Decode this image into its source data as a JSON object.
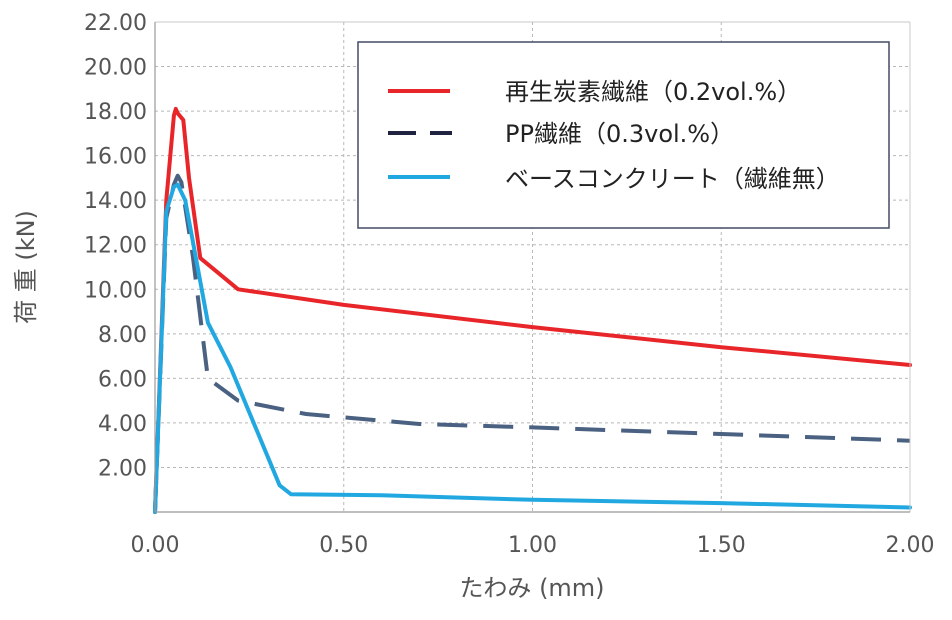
{
  "chart_data": {
    "type": "line",
    "xlabel": "たわみ (mm)",
    "ylabel": "荷 重 (kN)",
    "xlim": [
      0,
      2.0
    ],
    "ylim": [
      0,
      22.0
    ],
    "x_ticks": [
      "0.00",
      "0.50",
      "1.00",
      "1.50",
      "2.00"
    ],
    "y_ticks": [
      "2.00",
      "4.00",
      "6.00",
      "8.00",
      "10.00",
      "12.00",
      "14.00",
      "16.00",
      "18.00",
      "20.00",
      "22.00"
    ],
    "grid": true,
    "legend_position": "top-right",
    "series": [
      {
        "name": "再生炭素繊維（0.2vol.%）",
        "color": "#e8262a",
        "style": "solid",
        "points": [
          [
            0.0,
            0.0
          ],
          [
            0.03,
            14.0
          ],
          [
            0.05,
            17.8
          ],
          [
            0.055,
            18.1
          ],
          [
            0.06,
            17.9
          ],
          [
            0.075,
            17.6
          ],
          [
            0.09,
            15.0
          ],
          [
            0.12,
            11.4
          ],
          [
            0.22,
            10.0
          ],
          [
            0.5,
            9.3
          ],
          [
            1.0,
            8.3
          ],
          [
            1.5,
            7.4
          ],
          [
            2.0,
            6.6
          ]
        ]
      },
      {
        "name": "PP繊維（0.3vol.%）",
        "color": "#4a6182",
        "style": "dashed",
        "points": [
          [
            0.0,
            0.0
          ],
          [
            0.03,
            13.2
          ],
          [
            0.05,
            14.7
          ],
          [
            0.06,
            15.1
          ],
          [
            0.07,
            14.8
          ],
          [
            0.1,
            11.5
          ],
          [
            0.14,
            6.0
          ],
          [
            0.22,
            5.0
          ],
          [
            0.4,
            4.4
          ],
          [
            0.7,
            3.95
          ],
          [
            1.0,
            3.8
          ],
          [
            1.5,
            3.5
          ],
          [
            2.0,
            3.2
          ]
        ]
      },
      {
        "name": "ベースコンクリート（繊維無）",
        "color": "#22a8e0",
        "style": "solid",
        "points": [
          [
            0.0,
            0.0
          ],
          [
            0.03,
            13.5
          ],
          [
            0.05,
            14.6
          ],
          [
            0.06,
            14.7
          ],
          [
            0.08,
            14.0
          ],
          [
            0.14,
            8.5
          ],
          [
            0.2,
            6.5
          ],
          [
            0.33,
            1.2
          ],
          [
            0.36,
            0.8
          ],
          [
            0.6,
            0.75
          ],
          [
            1.0,
            0.55
          ],
          [
            1.5,
            0.4
          ],
          [
            2.0,
            0.2
          ]
        ]
      }
    ]
  }
}
